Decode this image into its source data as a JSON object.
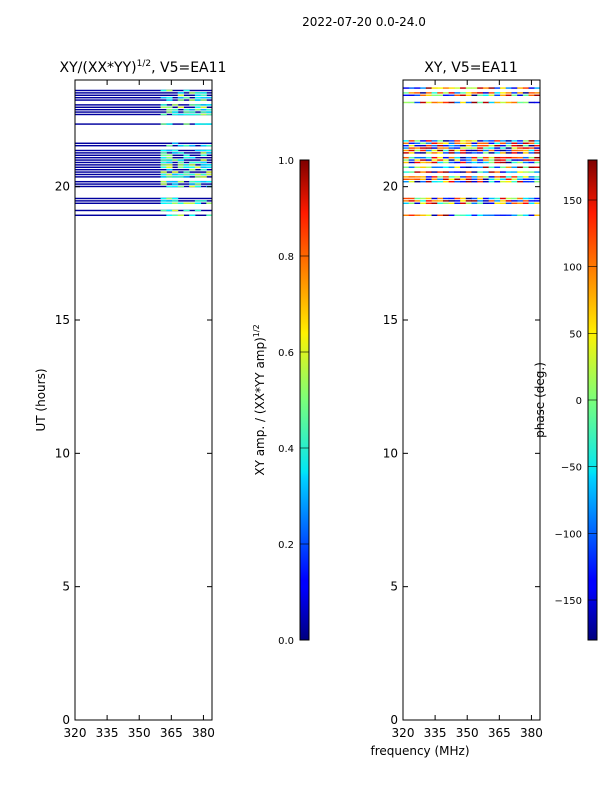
{
  "chart_data": {
    "figure_title": "2022-07-20 0.0-24.0",
    "xlabel_shared": "frequency (MHz)",
    "panels": [
      {
        "type": "heatmap",
        "title": "XY/(XX*YY)",
        "title_sup": "1/2",
        "title_suffix": ", V5=EA11",
        "ylabel": "UT (hours)",
        "xlim": [
          320,
          384
        ],
        "ylim": [
          0,
          24
        ],
        "xticks": [
          320,
          335,
          350,
          365,
          380
        ],
        "yticks": [
          0,
          5,
          10,
          15,
          20
        ],
        "data_time_range": [
          18.9,
          23.7
        ],
        "data_gaps": [
          [
            19.6,
            19.9
          ],
          [
            21.7,
            22.2
          ],
          [
            22.4,
            22.6
          ]
        ],
        "colormap": "jet",
        "colorbar": {
          "label": "XY amp. / (XX*YY amp)",
          "label_sup": "1/2",
          "range": [
            0.0,
            1.0
          ],
          "ticks": [
            "0.0",
            "0.2",
            "0.4",
            "0.6",
            "0.8",
            "1.0"
          ]
        }
      },
      {
        "type": "heatmap",
        "title": "XY, V5=EA11",
        "ylabel": "",
        "xlim": [
          320,
          384
        ],
        "ylim": [
          0,
          24
        ],
        "xticks": [
          320,
          335,
          350,
          365,
          380
        ],
        "yticks": [
          0,
          5,
          10,
          15,
          20
        ],
        "data_time_range": [
          18.9,
          23.7
        ],
        "data_gaps": [
          [
            19.6,
            19.9
          ],
          [
            21.7,
            22.2
          ],
          [
            22.4,
            22.6
          ]
        ],
        "colormap": "jet",
        "colorbar": {
          "label": "phase (deg.)",
          "range": [
            -180,
            180
          ],
          "ticks": [
            "−150",
            "−100",
            "−50",
            "0",
            "50",
            "100",
            "150"
          ]
        }
      }
    ]
  }
}
